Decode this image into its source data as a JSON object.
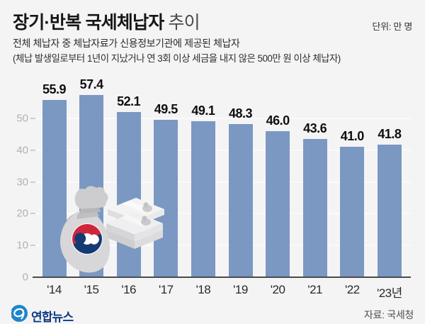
{
  "header": {
    "title_bold": "장기·반복 국세체납자",
    "title_light": "추이",
    "unit": "단위: 만 명",
    "subtitle1": "전체 체납자 중 체납자료가 신용정보기관에 제공된 체납자",
    "subtitle2": "(체납 발생일로부터 1년이 지났거나 연 3회 이상 세금을 내지 않은 500만 원 이상 체납자)"
  },
  "chart_data": {
    "type": "bar",
    "title": "장기·반복 국세체납자 추이",
    "unit": "만 명",
    "categories": [
      "'14",
      "'15",
      "'16",
      "'17",
      "'18",
      "'19",
      "'20",
      "'21",
      "'22",
      "'23년"
    ],
    "values": [
      55.9,
      57.4,
      52.1,
      49.5,
      49.1,
      48.3,
      46.0,
      43.6,
      41.0,
      41.8
    ],
    "ylim": [
      0,
      60
    ],
    "yticks": [
      0,
      10,
      20,
      30,
      40,
      50
    ],
    "grid": true,
    "legend": "none",
    "bar_color": "#7b98c3",
    "value_labels": "above-bars, one decimal"
  },
  "icons": {
    "money_bag_icon": "gray money bag with Korean government taegeuk emblem",
    "banknote_stack_icon": "stack of banknote bundles",
    "yonhap-logo-icon": "blue circle with white swirl"
  },
  "colors": {
    "background": "#f4f4f5",
    "bar": "#7b98c3",
    "axis": "#4b4b4d",
    "emblem_red": "#d0263c",
    "emblem_navy": "#143a74",
    "logo_blue": "#1d86cc",
    "logo_text_navy": "#0f3a80"
  },
  "footer": {
    "logo_text": "연합뉴스",
    "source": "자료: 국세청"
  }
}
